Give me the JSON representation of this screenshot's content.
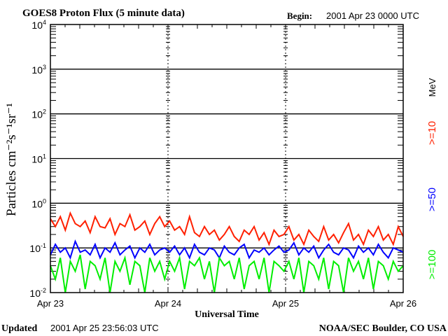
{
  "chart_data": {
    "type": "line",
    "title": "GOES8 Proton Flux (5 minute data)",
    "begin_label": "Begin:",
    "begin_value": "2001 Apr 23 0000 UTC",
    "xlabel": "Universal Time",
    "ylabel": "Particles cm⁻²s⁻¹sr⁻¹",
    "yscale": "log",
    "ylim": [
      0.01,
      10000
    ],
    "y_ticks": [
      {
        "base": "10",
        "exp": "4"
      },
      {
        "base": "10",
        "exp": "3"
      },
      {
        "base": "10",
        "exp": "2"
      },
      {
        "base": "10",
        "exp": "1"
      },
      {
        "base": "10",
        "exp": "0"
      },
      {
        "base": "10",
        "exp": "-1"
      },
      {
        "base": "10",
        "exp": "-2"
      }
    ],
    "x_ticks": [
      "Apr 23",
      "Apr 24",
      "Apr 25",
      "Apr 26"
    ],
    "x_unit": "hours since 2001 Apr 23 0000 UTC",
    "xlim": [
      0,
      72
    ],
    "grid": true,
    "legend_placement": "right",
    "legend_unit": "MeV",
    "series": [
      {
        "name": ">=10",
        "color": "#ff2000",
        "values": [
          0.45,
          0.3,
          0.5,
          0.25,
          0.6,
          0.35,
          0.3,
          0.4,
          0.22,
          0.5,
          0.3,
          0.28,
          0.45,
          0.2,
          0.35,
          0.3,
          0.55,
          0.25,
          0.3,
          0.4,
          0.2,
          0.35,
          0.5,
          0.3,
          0.4,
          0.25,
          0.3,
          0.2,
          0.5,
          0.22,
          0.18,
          0.3,
          0.2,
          0.25,
          0.15,
          0.2,
          0.3,
          0.18,
          0.14,
          0.25,
          0.2,
          0.3,
          0.15,
          0.22,
          0.12,
          0.25,
          0.18,
          0.2,
          0.3,
          0.15,
          0.2,
          0.12,
          0.25,
          0.18,
          0.14,
          0.3,
          0.15,
          0.2,
          0.13,
          0.22,
          0.35,
          0.15,
          0.2,
          0.12,
          0.25,
          0.18,
          0.3,
          0.15,
          0.2,
          0.12,
          0.3,
          0.18
        ]
      },
      {
        "name": ">=50",
        "color": "#0000ff",
        "values": [
          0.07,
          0.12,
          0.08,
          0.1,
          0.06,
          0.14,
          0.08,
          0.09,
          0.07,
          0.12,
          0.06,
          0.1,
          0.08,
          0.13,
          0.07,
          0.09,
          0.11,
          0.06,
          0.1,
          0.08,
          0.12,
          0.07,
          0.09,
          0.1,
          0.08,
          0.11,
          0.07,
          0.1,
          0.06,
          0.12,
          0.08,
          0.07,
          0.1,
          0.09,
          0.06,
          0.11,
          0.08,
          0.07,
          0.1,
          0.12,
          0.06,
          0.09,
          0.08,
          0.1,
          0.07,
          0.09,
          0.11,
          0.08,
          0.09,
          0.13,
          0.07,
          0.1,
          0.08,
          0.11,
          0.06,
          0.09,
          0.12,
          0.08,
          0.07,
          0.1,
          0.09,
          0.06,
          0.11,
          0.08,
          0.1,
          0.07,
          0.12,
          0.08,
          0.06,
          0.1,
          0.09,
          0.08
        ]
      },
      {
        "name": ">=100",
        "color": "#00ee00",
        "values": [
          0.04,
          0.02,
          0.06,
          0.01,
          0.05,
          0.03,
          0.07,
          0.012,
          0.05,
          0.04,
          0.02,
          0.06,
          0.01,
          0.05,
          0.03,
          0.06,
          0.015,
          0.05,
          0.04,
          0.01,
          0.06,
          0.03,
          0.05,
          0.02,
          0.05,
          0.03,
          0.06,
          0.012,
          0.05,
          0.04,
          0.06,
          0.02,
          0.05,
          0.01,
          0.06,
          0.04,
          0.05,
          0.02,
          0.06,
          0.012,
          0.04,
          0.05,
          0.02,
          0.06,
          0.01,
          0.05,
          0.04,
          0.03,
          0.05,
          0.02,
          0.06,
          0.01,
          0.05,
          0.04,
          0.02,
          0.06,
          0.012,
          0.05,
          0.04,
          0.01,
          0.06,
          0.03,
          0.05,
          0.02,
          0.06,
          0.012,
          0.05,
          0.04,
          0.02,
          0.05,
          0.03,
          0.04
        ]
      }
    ]
  },
  "footer": {
    "updated_label": "Updated",
    "updated_value": "2001 Apr 25 23:56:03 UTC",
    "credit": "NOAA/SEC Boulder, CO USA"
  }
}
